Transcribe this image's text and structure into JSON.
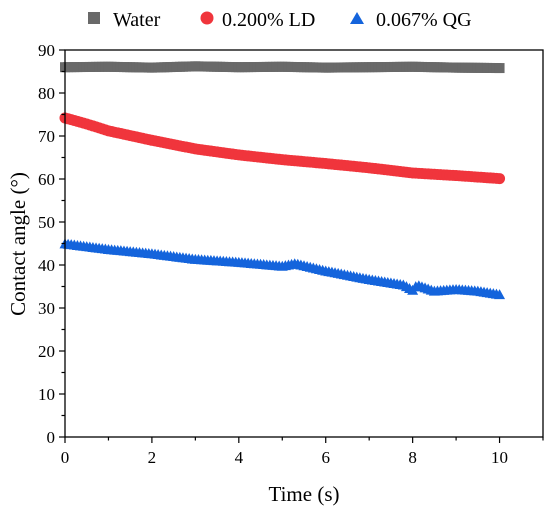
{
  "chart_data": {
    "type": "scatter",
    "title": "",
    "xlabel": "Time (s)",
    "ylabel": "Contact angle (°)",
    "xlim": [
      0,
      11
    ],
    "ylim": [
      0,
      90
    ],
    "xticks": [
      "0",
      "2",
      "4",
      "6",
      "8",
      "10"
    ],
    "yticks": [
      "0",
      "10",
      "20",
      "30",
      "40",
      "50",
      "60",
      "70",
      "80",
      "90"
    ],
    "legend_position": "top",
    "grid": false,
    "series": [
      {
        "name": "Water",
        "marker": "square",
        "color": "#696969",
        "x_range": [
          0,
          10
        ],
        "anchors_x": [
          0,
          1,
          2,
          3,
          4,
          5,
          6,
          7,
          8,
          9,
          10
        ],
        "anchors_y": [
          86.0,
          86.1,
          85.9,
          86.2,
          86.0,
          86.1,
          85.9,
          86.0,
          86.1,
          85.9,
          85.8
        ]
      },
      {
        "name": "0.200% LD",
        "marker": "circle",
        "color": "#f0353c",
        "x_range": [
          0,
          10
        ],
        "anchors_x": [
          0,
          0.5,
          1,
          2,
          3,
          4,
          5,
          6,
          7,
          8,
          9,
          10
        ],
        "anchors_y": [
          74.2,
          72.8,
          71.2,
          69.0,
          67.0,
          65.6,
          64.5,
          63.6,
          62.6,
          61.4,
          60.8,
          60.1
        ]
      },
      {
        "name": "0.067% QG",
        "marker": "triangle",
        "color": "#1464dc",
        "x_range": [
          0,
          10
        ],
        "anchors_x": [
          0,
          1,
          2,
          3,
          4,
          5,
          5.3,
          6,
          7,
          7.8,
          8.0,
          8.1,
          8.5,
          9.0,
          9.5,
          10
        ],
        "anchors_y": [
          44.8,
          43.5,
          42.5,
          41.2,
          40.5,
          39.6,
          40.2,
          38.5,
          36.5,
          35.2,
          34.0,
          35.2,
          33.8,
          34.2,
          33.8,
          33.0
        ]
      }
    ]
  }
}
